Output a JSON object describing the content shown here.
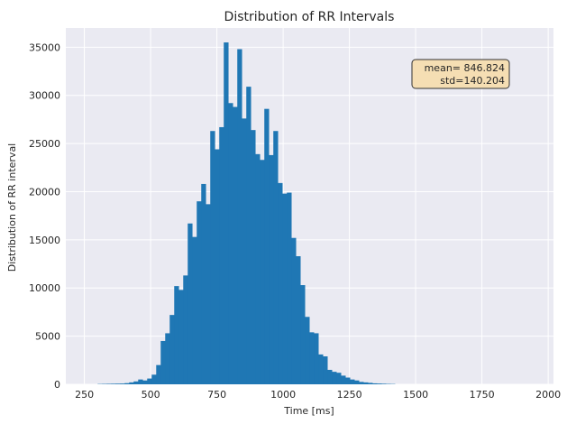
{
  "chart_data": {
    "type": "bar",
    "title": "Distribution of RR Intervals",
    "xlabel": "Time [ms]",
    "ylabel": "Distribution of RR interval",
    "xlim": [
      180,
      2020
    ],
    "ylim": [
      0,
      37000
    ],
    "xticks": [
      250,
      500,
      750,
      1000,
      1250,
      1500,
      1750,
      2000
    ],
    "yticks": [
      0,
      5000,
      10000,
      15000,
      20000,
      25000,
      30000,
      35000
    ],
    "grid": true,
    "bin_width": 17,
    "bins": [
      {
        "x": 300,
        "y": 30
      },
      {
        "x": 317,
        "y": 40
      },
      {
        "x": 334,
        "y": 50
      },
      {
        "x": 351,
        "y": 60
      },
      {
        "x": 368,
        "y": 70
      },
      {
        "x": 385,
        "y": 80
      },
      {
        "x": 402,
        "y": 120
      },
      {
        "x": 419,
        "y": 200
      },
      {
        "x": 436,
        "y": 300
      },
      {
        "x": 453,
        "y": 500
      },
      {
        "x": 470,
        "y": 400
      },
      {
        "x": 487,
        "y": 600
      },
      {
        "x": 504,
        "y": 1000
      },
      {
        "x": 521,
        "y": 2000
      },
      {
        "x": 538,
        "y": 4500
      },
      {
        "x": 555,
        "y": 5300
      },
      {
        "x": 572,
        "y": 7200
      },
      {
        "x": 589,
        "y": 10200
      },
      {
        "x": 606,
        "y": 9800
      },
      {
        "x": 623,
        "y": 11300
      },
      {
        "x": 640,
        "y": 16700
      },
      {
        "x": 657,
        "y": 15300
      },
      {
        "x": 674,
        "y": 19000
      },
      {
        "x": 691,
        "y": 20800
      },
      {
        "x": 708,
        "y": 18700
      },
      {
        "x": 725,
        "y": 26300
      },
      {
        "x": 742,
        "y": 24400
      },
      {
        "x": 759,
        "y": 26700
      },
      {
        "x": 776,
        "y": 35500
      },
      {
        "x": 793,
        "y": 29200
      },
      {
        "x": 810,
        "y": 28800
      },
      {
        "x": 827,
        "y": 34800
      },
      {
        "x": 844,
        "y": 27600
      },
      {
        "x": 861,
        "y": 30900
      },
      {
        "x": 878,
        "y": 26400
      },
      {
        "x": 895,
        "y": 23900
      },
      {
        "x": 912,
        "y": 23300
      },
      {
        "x": 929,
        "y": 28600
      },
      {
        "x": 946,
        "y": 23800
      },
      {
        "x": 963,
        "y": 26300
      },
      {
        "x": 980,
        "y": 20900
      },
      {
        "x": 997,
        "y": 19800
      },
      {
        "x": 1014,
        "y": 19900
      },
      {
        "x": 1031,
        "y": 15200
      },
      {
        "x": 1048,
        "y": 13300
      },
      {
        "x": 1065,
        "y": 10300
      },
      {
        "x": 1082,
        "y": 7000
      },
      {
        "x": 1099,
        "y": 5400
      },
      {
        "x": 1116,
        "y": 5300
      },
      {
        "x": 1133,
        "y": 3100
      },
      {
        "x": 1150,
        "y": 2900
      },
      {
        "x": 1167,
        "y": 1500
      },
      {
        "x": 1184,
        "y": 1300
      },
      {
        "x": 1201,
        "y": 1200
      },
      {
        "x": 1218,
        "y": 900
      },
      {
        "x": 1235,
        "y": 700
      },
      {
        "x": 1252,
        "y": 500
      },
      {
        "x": 1269,
        "y": 400
      },
      {
        "x": 1286,
        "y": 250
      },
      {
        "x": 1303,
        "y": 200
      },
      {
        "x": 1320,
        "y": 150
      },
      {
        "x": 1337,
        "y": 100
      },
      {
        "x": 1354,
        "y": 80
      },
      {
        "x": 1371,
        "y": 60
      },
      {
        "x": 1388,
        "y": 40
      },
      {
        "x": 1405,
        "y": 30
      }
    ],
    "annotation": {
      "lines": [
        "mean= 846.824",
        "std=140.204"
      ]
    },
    "colors": {
      "bar": "#1f77b4",
      "plot_bg": "#eaeaf2",
      "grid": "#ffffff",
      "anno_bg": "#f5deb3",
      "anno_border": "#333333"
    }
  }
}
